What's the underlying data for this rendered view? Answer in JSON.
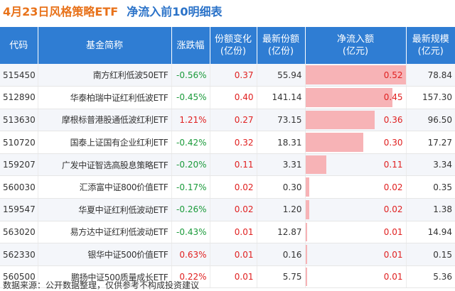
{
  "title": {
    "main": "4月23日风格策略ETF",
    "sub": "净流入前10明细表"
  },
  "columns": [
    {
      "line1": "代码",
      "line2": ""
    },
    {
      "line1": "基金简称",
      "line2": ""
    },
    {
      "line1": "涨跌幅",
      "line2": ""
    },
    {
      "line1": "份额变化",
      "line2": "(亿份)"
    },
    {
      "line1": "最新份额",
      "line2": "(亿份)"
    },
    {
      "line1": "净流入额",
      "line2": "(亿元)"
    },
    {
      "line1": "最新规模",
      "line2": "(亿元)"
    }
  ],
  "chart_data": {
    "type": "table",
    "title": "4月23日风格策略ETF 净流入前10明细表",
    "bar_column": "净流入额(亿元)",
    "bar_max": 0.52,
    "rows": [
      {
        "code": "515450",
        "name": "南方红利低波50ETF",
        "change": "-0.56%",
        "share_change": "0.37",
        "share_total": "55.94",
        "net_inflow": "0.52",
        "inflow_value": 0.52,
        "size": "78.84"
      },
      {
        "code": "512890",
        "name": "华泰柏瑞中证红利低波ETF",
        "change": "-0.45%",
        "share_change": "0.40",
        "share_total": "141.14",
        "net_inflow": "0.45",
        "inflow_value": 0.45,
        "size": "157.30"
      },
      {
        "code": "513630",
        "name": "摩根标普港股通低波红利ETF",
        "change": "1.21%",
        "share_change": "0.27",
        "share_total": "73.15",
        "net_inflow": "0.36",
        "inflow_value": 0.36,
        "size": "96.50"
      },
      {
        "code": "510720",
        "name": "国泰上证国有企业红利ETF",
        "change": "-0.42%",
        "share_change": "0.32",
        "share_total": "18.31",
        "net_inflow": "0.30",
        "inflow_value": 0.3,
        "size": "17.27"
      },
      {
        "code": "159207",
        "name": "广发中证智选高股息策略ETF",
        "change": "-0.20%",
        "share_change": "0.11",
        "share_total": "3.31",
        "net_inflow": "0.11",
        "inflow_value": 0.11,
        "size": "3.34"
      },
      {
        "code": "560030",
        "name": "汇添富中证800价值ETF",
        "change": "-0.17%",
        "share_change": "0.02",
        "share_total": "0.30",
        "net_inflow": "0.02",
        "inflow_value": 0.02,
        "size": "0.35"
      },
      {
        "code": "159547",
        "name": "华夏中证红利低波动ETF",
        "change": "-0.26%",
        "share_change": "0.02",
        "share_total": "1.20",
        "net_inflow": "0.02",
        "inflow_value": 0.02,
        "size": "1.38"
      },
      {
        "code": "563020",
        "name": "易方达中证红利低波动ETF",
        "change": "-0.43%",
        "share_change": "0.01",
        "share_total": "12.87",
        "net_inflow": "0.01",
        "inflow_value": 0.01,
        "size": "14.94"
      },
      {
        "code": "562330",
        "name": "银华中证500价值ETF",
        "change": "0.63%",
        "share_change": "0.01",
        "share_total": "0.16",
        "net_inflow": "0.01",
        "inflow_value": 0.01,
        "size": "0.15"
      },
      {
        "code": "560500",
        "name": "鹏扬中证500质量成长ETF",
        "change": "0.22%",
        "share_change": "0.01",
        "share_total": "5.75",
        "net_inflow": "0.01",
        "inflow_value": 0.01,
        "size": "5.36"
      }
    ]
  },
  "footer": "数据来源：公开数据整理，仅供参考不构成投资建议",
  "colors": {
    "header_bg": "#2f7dd3",
    "title_main": "#e8721a",
    "title_sub": "#2a72c8",
    "up": "#e02020",
    "down": "#1a9a3a",
    "bar": "#f7b3b6"
  }
}
